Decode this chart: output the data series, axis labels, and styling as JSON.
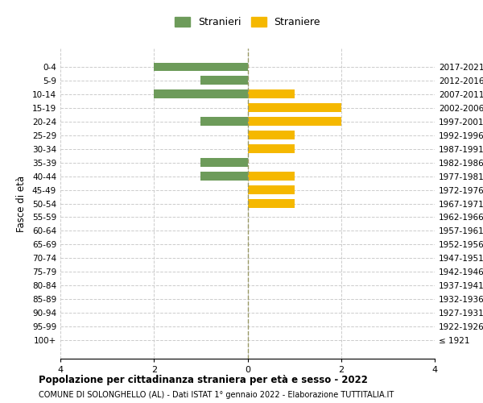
{
  "age_groups": [
    "100+",
    "95-99",
    "90-94",
    "85-89",
    "80-84",
    "75-79",
    "70-74",
    "65-69",
    "60-64",
    "55-59",
    "50-54",
    "45-49",
    "40-44",
    "35-39",
    "30-34",
    "25-29",
    "20-24",
    "15-19",
    "10-14",
    "5-9",
    "0-4"
  ],
  "birth_years": [
    "≤ 1921",
    "1922-1926",
    "1927-1931",
    "1932-1936",
    "1937-1941",
    "1942-1946",
    "1947-1951",
    "1952-1956",
    "1957-1961",
    "1962-1966",
    "1967-1971",
    "1972-1976",
    "1977-1981",
    "1982-1986",
    "1987-1991",
    "1992-1996",
    "1997-2001",
    "2002-2006",
    "2007-2011",
    "2012-2016",
    "2017-2021"
  ],
  "males": [
    0,
    0,
    0,
    0,
    0,
    0,
    0,
    0,
    0,
    0,
    0,
    0,
    1,
    1,
    0,
    0,
    1,
    0,
    2,
    1,
    2
  ],
  "females": [
    0,
    0,
    0,
    0,
    0,
    0,
    0,
    0,
    0,
    0,
    1,
    1,
    1,
    0,
    1,
    1,
    2,
    2,
    1,
    0,
    0
  ],
  "male_color": "#6d9b5a",
  "female_color": "#f5b800",
  "background_color": "#ffffff",
  "grid_color": "#cccccc",
  "title": "Popolazione per cittadinanza straniera per età e sesso - 2022",
  "subtitle": "COMUNE DI SOLONGHELLO (AL) - Dati ISTAT 1° gennaio 2022 - Elaborazione TUTTITALIA.IT",
  "y_left_label": "Fasce di età",
  "legend_male": "Stranieri",
  "legend_female": "Straniere",
  "xlim": 4,
  "xticks": [
    -4,
    -2,
    0,
    2,
    4
  ],
  "xticklabels": [
    "4",
    "2",
    "0",
    "2",
    "4"
  ]
}
